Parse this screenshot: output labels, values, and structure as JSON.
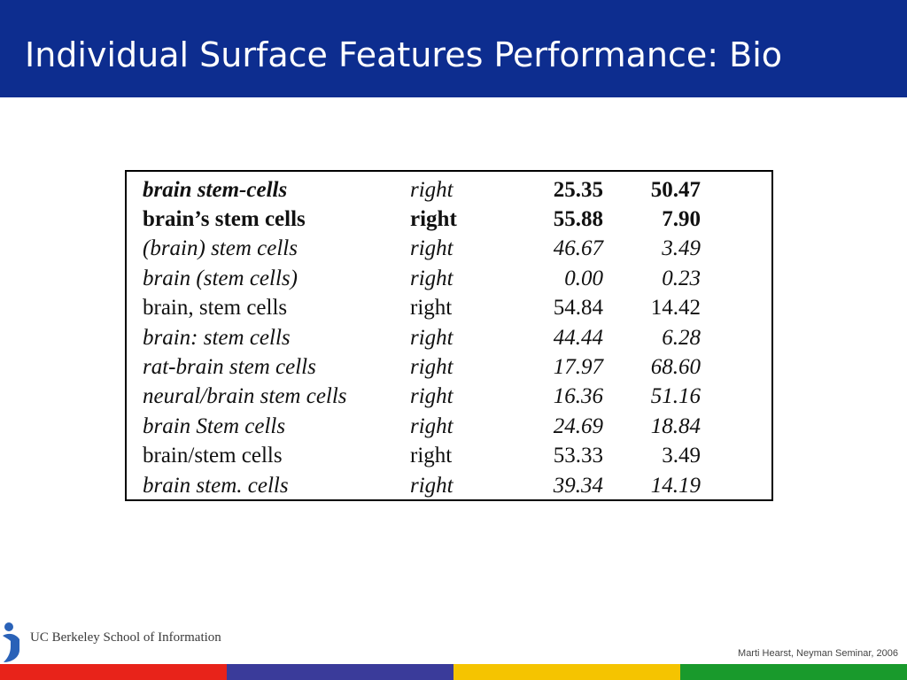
{
  "slide": {
    "title": "Individual Surface Features Performance: Bio"
  },
  "table": {
    "rows": [
      {
        "term": "brain stem-cells",
        "direction": "right",
        "value1": "25.35",
        "value2": "50.47",
        "style": "bold-italic"
      },
      {
        "term": "brain’s stem cells",
        "direction": "right",
        "value1": "55.88",
        "value2": "7.90",
        "style": "bold"
      },
      {
        "term": "(brain) stem cells",
        "direction": "right",
        "value1": "46.67",
        "value2": "3.49",
        "style": "italic"
      },
      {
        "term": "brain (stem cells)",
        "direction": "right",
        "value1": "0.00",
        "value2": "0.23",
        "style": "italic"
      },
      {
        "term": "brain, stem cells",
        "direction": "right",
        "value1": "54.84",
        "value2": "14.42",
        "style": "normal"
      },
      {
        "term": "brain: stem cells",
        "direction": "right",
        "value1": "44.44",
        "value2": "6.28",
        "style": "italic"
      },
      {
        "term": "rat-brain stem cells",
        "direction": "right",
        "value1": "17.97",
        "value2": "68.60",
        "style": "italic"
      },
      {
        "term": "neural/brain stem cells",
        "direction": "right",
        "value1": "16.36",
        "value2": "51.16",
        "style": "italic"
      },
      {
        "term": "brain Stem cells",
        "direction": "right",
        "value1": "24.69",
        "value2": "18.84",
        "style": "italic"
      },
      {
        "term": "brain/stem cells",
        "direction": "right",
        "value1": "53.33",
        "value2": "3.49",
        "style": "normal"
      },
      {
        "term": "brain stem. cells",
        "direction": "right",
        "value1": "39.34",
        "value2": "14.19",
        "style": "italic"
      }
    ]
  },
  "footer": {
    "logo_text": "UC Berkeley School of Information",
    "logo_icon": "berkeley-i-icon",
    "credit": "Marti Hearst, Neyman Seminar, 2006",
    "strip_colors": [
      "#e8231a",
      "#3a3b9a",
      "#f5c400",
      "#199a2c"
    ]
  },
  "colors": {
    "header_bg": "#0d2d8f",
    "title_text": "#ffffff"
  }
}
